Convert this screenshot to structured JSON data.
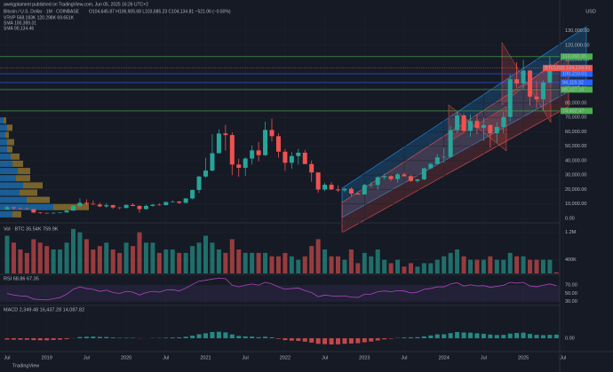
{
  "header": {
    "published": "aweigplament published on TradingView.com, Jun 05, 2025 16:26 UTC+2",
    "symbol": "Bitcoin / U.S. Dollar · 1M · COINBASE",
    "ohlc": "O104,645.87 H106,905.68 L103,685.23 C104,134.81 −521.06 (−0.50%)",
    "vrvp": "VRVP  568.183K  120.298K  69.651K",
    "sma1": "SMA  100,389.31",
    "sma2": "SMA  90,134.46",
    "currency": "USD",
    "logo": "TradingView"
  },
  "chart_data": [
    {
      "type": "candlestick",
      "up_color": "#26a69a",
      "down_color": "#ef5350",
      "x": [
        "2018-07",
        "2018-08",
        "2018-09",
        "2018-10",
        "2018-11",
        "2018-12",
        "2019-01",
        "2019-02",
        "2019-03",
        "2019-04",
        "2019-05",
        "2019-06",
        "2019-07",
        "2019-08",
        "2019-09",
        "2019-10",
        "2019-11",
        "2019-12",
        "2020-01",
        "2020-02",
        "2020-03",
        "2020-04",
        "2020-05",
        "2020-06",
        "2020-07",
        "2020-08",
        "2020-09",
        "2020-10",
        "2020-11",
        "2020-12",
        "2021-01",
        "2021-02",
        "2021-03",
        "2021-04",
        "2021-05",
        "2021-06",
        "2021-07",
        "2021-08",
        "2021-09",
        "2021-10",
        "2021-11",
        "2021-12",
        "2022-01",
        "2022-02",
        "2022-03",
        "2022-04",
        "2022-05",
        "2022-06",
        "2022-07",
        "2022-08",
        "2022-09",
        "2022-10",
        "2022-11",
        "2022-12",
        "2023-01",
        "2023-02",
        "2023-03",
        "2023-04",
        "2023-05",
        "2023-06",
        "2023-07",
        "2023-08",
        "2023-09",
        "2023-10",
        "2023-11",
        "2023-12",
        "2024-01",
        "2024-02",
        "2024-03",
        "2024-04",
        "2024-05",
        "2024-06",
        "2024-07",
        "2024-08",
        "2024-09",
        "2024-10",
        "2024-11",
        "2024-12",
        "2025-01",
        "2025-02",
        "2025-03",
        "2025-04",
        "2025-05",
        "2025-06"
      ],
      "open": [
        6390,
        7730,
        7030,
        6630,
        6370,
        4040,
        3740,
        3460,
        3830,
        4100,
        5350,
        8570,
        10820,
        10080,
        9590,
        8290,
        9150,
        7550,
        7190,
        9350,
        8540,
        6410,
        8630,
        9450,
        9140,
        11350,
        11650,
        10780,
        13800,
        19700,
        28990,
        33110,
        45140,
        58800,
        57720,
        37300,
        35040,
        41460,
        47100,
        43790,
        61300,
        56950,
        46210,
        38480,
        43160,
        45510,
        37630,
        31790,
        19940,
        23290,
        20050,
        19420,
        20490,
        17170,
        16540,
        23130,
        23140,
        28470,
        29270,
        27210,
        30470,
        29230,
        25930,
        26970,
        34650,
        37720,
        42280,
        42580,
        61170,
        71330,
        60640,
        67530,
        62760,
        64620,
        58970,
        63330,
        70220,
        96450,
        93430,
        102410,
        84350,
        82550,
        94210,
        104645.87
      ],
      "high": [
        8490,
        7760,
        7410,
        7680,
        6580,
        4250,
        4130,
        4210,
        4120,
        5640,
        9070,
        13880,
        13200,
        12330,
        10930,
        10540,
        9510,
        7750,
        9600,
        10500,
        9190,
        9460,
        10070,
        10380,
        11440,
        12470,
        12070,
        14100,
        19860,
        29300,
        41950,
        58350,
        61780,
        64850,
        59580,
        41300,
        42320,
        50500,
        52920,
        66930,
        69000,
        59040,
        47990,
        45820,
        48190,
        47440,
        39980,
        31990,
        24670,
        25200,
        22800,
        21080,
        21470,
        18390,
        23960,
        25250,
        29190,
        31000,
        29840,
        31430,
        31810,
        30180,
        27480,
        35200,
        38420,
        44700,
        48970,
        64000,
        73800,
        72800,
        71980,
        71960,
        70000,
        65100,
        66500,
        73620,
        99800,
        108350,
        109590,
        102750,
        95000,
        95760,
        111980,
        106905.68
      ],
      "low": [
        5860,
        5880,
        6110,
        6220,
        3550,
        3120,
        3390,
        3370,
        3680,
        4080,
        5330,
        7500,
        9060,
        9420,
        7710,
        7300,
        6520,
        6430,
        6850,
        8450,
        3850,
        6150,
        8100,
        8820,
        8970,
        10980,
        9880,
        10370,
        13200,
        17570,
        28130,
        32380,
        45000,
        47000,
        30000,
        28800,
        29280,
        37330,
        39600,
        43280,
        53250,
        42000,
        32930,
        34320,
        37150,
        37700,
        25400,
        17600,
        18780,
        19550,
        18150,
        18190,
        15480,
        16260,
        16500,
        21350,
        19570,
        26940,
        25810,
        24800,
        28860,
        25170,
        24900,
        26540,
        34070,
        37620,
        38500,
        41880,
        59100,
        59600,
        56550,
        58400,
        53550,
        49000,
        52550,
        58900,
        66800,
        90500,
        89160,
        78200,
        76600,
        74400,
        93400,
        103685.23
      ],
      "close": [
        7730,
        7030,
        6630,
        6370,
        4040,
        3740,
        3460,
        3830,
        4100,
        5350,
        8570,
        10820,
        10080,
        9590,
        8290,
        9150,
        7550,
        7190,
        9350,
        8540,
        6410,
        8630,
        9450,
        9140,
        11350,
        11650,
        10780,
        13800,
        19700,
        28990,
        33110,
        45140,
        58800,
        57720,
        37300,
        35040,
        41460,
        47100,
        43790,
        61300,
        56950,
        46210,
        38480,
        43160,
        45510,
        37630,
        31790,
        19940,
        23290,
        20050,
        19420,
        20490,
        17170,
        16540,
        23130,
        23140,
        28470,
        29270,
        27210,
        30470,
        29230,
        25930,
        26970,
        34650,
        37720,
        42280,
        42580,
        61170,
        71330,
        60640,
        67530,
        62760,
        64620,
        58970,
        63330,
        70220,
        96450,
        93430,
        102410,
        84350,
        82550,
        94210,
        104600,
        104134.81
      ],
      "ylim": [
        -2500,
        139000
      ],
      "yticks": [
        {
          "value": 0,
          "label": "0.00"
        },
        {
          "value": 10000,
          "label": "10,000.00"
        },
        {
          "value": 20000,
          "label": "20,000.00"
        },
        {
          "value": 30000,
          "label": "30,000.00"
        },
        {
          "value": 40000,
          "label": "40,000.00"
        },
        {
          "value": 50000,
          "label": "50,000.00"
        },
        {
          "value": 60000,
          "label": "60,000.00"
        },
        {
          "value": 70000,
          "label": "70,000.00"
        },
        {
          "value": 80000,
          "label": "80,000.00"
        },
        {
          "value": 90000,
          "label": "90,000.00"
        },
        {
          "value": 100000,
          "label": "100,000.00"
        },
        {
          "value": 110000,
          "label": "110,000.00"
        },
        {
          "value": 120000,
          "label": "120,000.00"
        },
        {
          "value": 130000,
          "label": "130,000.00"
        }
      ],
      "xticks": [
        {
          "value": "2018-07",
          "label": "Jul"
        },
        {
          "value": "2019-01",
          "label": "2019"
        },
        {
          "value": "2019-07",
          "label": "Jul"
        },
        {
          "value": "2020-01",
          "label": "2020"
        },
        {
          "value": "2020-07",
          "label": "Jul"
        },
        {
          "value": "2021-01",
          "label": "2021"
        },
        {
          "value": "2021-07",
          "label": "Jul"
        },
        {
          "value": "2022-01",
          "label": "2022"
        },
        {
          "value": "2022-07",
          "label": "Jul"
        },
        {
          "value": "2023-01",
          "label": "2023"
        },
        {
          "value": "2023-07",
          "label": "Jul"
        },
        {
          "value": "2024-01",
          "label": "2024"
        },
        {
          "value": "2024-07",
          "label": "Jul"
        },
        {
          "value": "2025-01",
          "label": "2025"
        },
        {
          "value": "2025-07",
          "label": "Jul"
        }
      ],
      "levels": [
        {
          "value": 112068.95,
          "label": "112,068.95",
          "color": "#4caf50"
        },
        {
          "value": 100210.01,
          "label": "100,210.01",
          "color": "#2962ff"
        },
        {
          "value": 94115.32,
          "label": "94,115.32",
          "color": "#2962ff"
        },
        {
          "value": 89227.16,
          "label": "89,227.16",
          "color": "#4caf50"
        },
        {
          "value": 74462.47,
          "label": "74,462.47",
          "color": "#4caf50"
        }
      ],
      "last_price": {
        "value": 104134.81,
        "label": "BTCUSD  104,134.81",
        "color": "#ef5350"
      },
      "volume_profile": {
        "prices": [
          2500,
          7500,
          12500,
          17500,
          22500,
          27500,
          32500,
          37500,
          42500,
          47500,
          52500,
          57500,
          62500,
          67500
        ],
        "up": [
          14,
          60,
          30,
          22,
          26,
          18,
          20,
          14,
          12,
          8,
          8,
          6,
          8,
          4
        ],
        "down": [
          10,
          40,
          26,
          20,
          22,
          16,
          14,
          12,
          10,
          6,
          8,
          4,
          6,
          3
        ],
        "up_color": "#2196f3",
        "down_color": "#c8a032",
        "xlim": [
          0,
          110
        ]
      }
    },
    {
      "type": "bar",
      "title": "Vol · BTC  35.54K  759.9K",
      "values": [
        1100000,
        900000,
        700000,
        600000,
        1000000,
        900000,
        800000,
        700000,
        700000,
        900000,
        1300000,
        1200000,
        1000000,
        700000,
        800000,
        900000,
        700000,
        600000,
        900000,
        800000,
        1200000,
        900000,
        900000,
        600000,
        700000,
        700000,
        600000,
        600000,
        800000,
        900000,
        1100000,
        900000,
        700000,
        600000,
        1000000,
        700000,
        600000,
        600000,
        600000,
        600000,
        500000,
        500000,
        600000,
        500000,
        400000,
        500000,
        800000,
        1000000,
        700000,
        500000,
        500000,
        400000,
        700000,
        300000,
        600000,
        500000,
        700000,
        400000,
        300000,
        400000,
        200000,
        300000,
        200000,
        300000,
        300000,
        400000,
        500000,
        600000,
        700000,
        500000,
        400000,
        400000,
        400000,
        500000,
        400000,
        400000,
        600000,
        500000,
        500000,
        400000,
        400000,
        400000,
        400000,
        35540
      ],
      "ylim": [
        0,
        1400000
      ],
      "yticks": [
        {
          "value": 400000,
          "label": "400K"
        },
        {
          "value": 1200000,
          "label": "1.2M"
        }
      ]
    },
    {
      "type": "line",
      "title": "RSI  68.86  67.35",
      "color": "#ab47bc",
      "values": [
        50,
        46,
        44,
        43,
        36,
        35,
        34,
        37,
        40,
        48,
        60,
        66,
        62,
        60,
        55,
        58,
        52,
        50,
        55,
        53,
        46,
        52,
        55,
        53,
        58,
        59,
        56,
        63,
        72,
        80,
        82,
        85,
        87,
        86,
        70,
        66,
        70,
        73,
        70,
        77,
        73,
        66,
        60,
        62,
        63,
        57,
        52,
        42,
        46,
        44,
        43,
        44,
        41,
        40,
        48,
        48,
        54,
        56,
        54,
        57,
        56,
        51,
        53,
        60,
        62,
        66,
        66,
        73,
        76,
        68,
        71,
        68,
        69,
        65,
        67,
        70,
        77,
        75,
        77,
        68,
        66,
        70,
        73,
        68.86
      ],
      "ylim": [
        25,
        90
      ],
      "yticks": [
        {
          "value": 70,
          "label": "70.00"
        },
        {
          "value": 50,
          "label": "50.00"
        },
        {
          "value": 30,
          "label": "30.00"
        }
      ]
    },
    {
      "type": "histogram",
      "title": "MACD  2,349.48  16,437.28  14,087.82",
      "positive_color": "#26a69a",
      "negative_color": "#ef5350",
      "values": [
        -800,
        -900,
        -950,
        -1000,
        -1200,
        -1300,
        -1300,
        -1100,
        -900,
        -600,
        100,
        800,
        1000,
        1100,
        900,
        800,
        500,
        300,
        300,
        250,
        -100,
        0,
        150,
        200,
        350,
        500,
        600,
        1000,
        1700,
        2600,
        3200,
        4000,
        4200,
        3800,
        2500,
        1500,
        1200,
        1100,
        700,
        1000,
        600,
        -400,
        -1200,
        -1500,
        -1700,
        -2200,
        -2800,
        -3600,
        -3800,
        -4000,
        -3900,
        -3600,
        -3400,
        -3200,
        -2600,
        -2100,
        -1400,
        -700,
        -300,
        200,
        500,
        600,
        700,
        1200,
        1800,
        2500,
        2600,
        3300,
        4000,
        3700,
        3600,
        3200,
        2900,
        2400,
        2100,
        2200,
        3000,
        3400,
        3600,
        2800,
        2200,
        2000,
        2200,
        2349.48
      ],
      "ylim": [
        -8000,
        20000
      ],
      "yticks": [
        {
          "value": 0,
          "label": "0.00"
        }
      ]
    }
  ]
}
